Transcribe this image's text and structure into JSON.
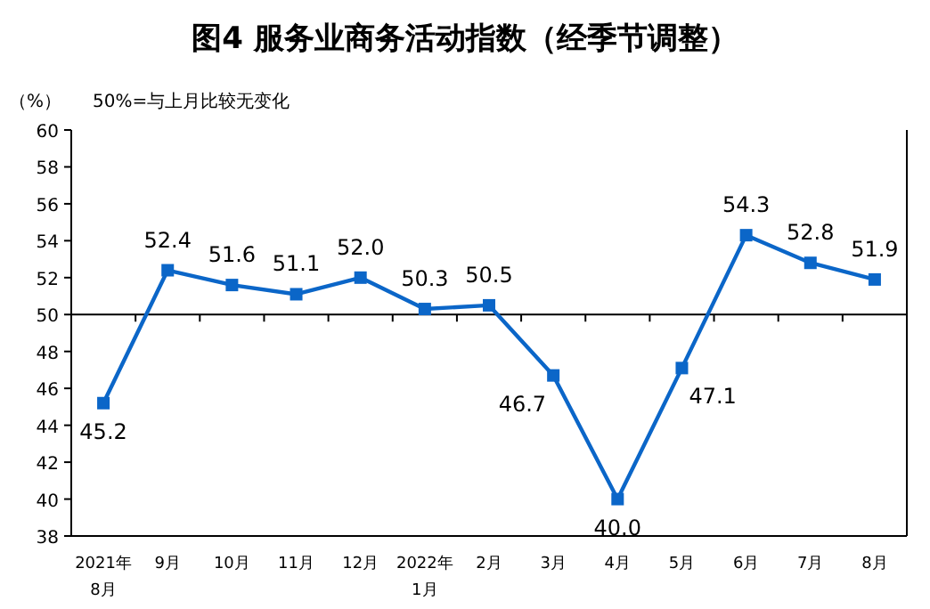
{
  "chart_data": {
    "type": "line",
    "title": "图4 服务业商务活动指数（经季节调整）",
    "ylabel": "（%）",
    "annotations": [
      "50%=与上月比较无变化"
    ],
    "categories": [
      "2021年\n8月",
      "9月",
      "10月",
      "11月",
      "12月",
      "2022年\n1月",
      "2月",
      "3月",
      "4月",
      "5月",
      "6月",
      "7月",
      "8月"
    ],
    "series": [
      {
        "color": "#0b66c8",
        "values": [
          45.2,
          52.4,
          51.6,
          51.1,
          52.0,
          50.3,
          50.5,
          46.7,
          40.0,
          47.1,
          54.3,
          52.8,
          51.9
        ],
        "value_labels": [
          "45.2",
          "52.4",
          "51.6",
          "51.1",
          "52.0",
          "50.3",
          "50.5",
          "46.7",
          "40.0",
          "47.1",
          "54.3",
          "52.8",
          "51.9"
        ]
      }
    ],
    "ylim": [
      38,
      60
    ],
    "yticks": [
      38,
      40,
      42,
      44,
      46,
      48,
      50,
      52,
      54,
      56,
      58,
      60
    ],
    "ref_lines": [
      {
        "axis": "y",
        "value": 50,
        "color": "#000000"
      }
    ],
    "marker": "square",
    "line_style": "solid",
    "grid": false
  }
}
